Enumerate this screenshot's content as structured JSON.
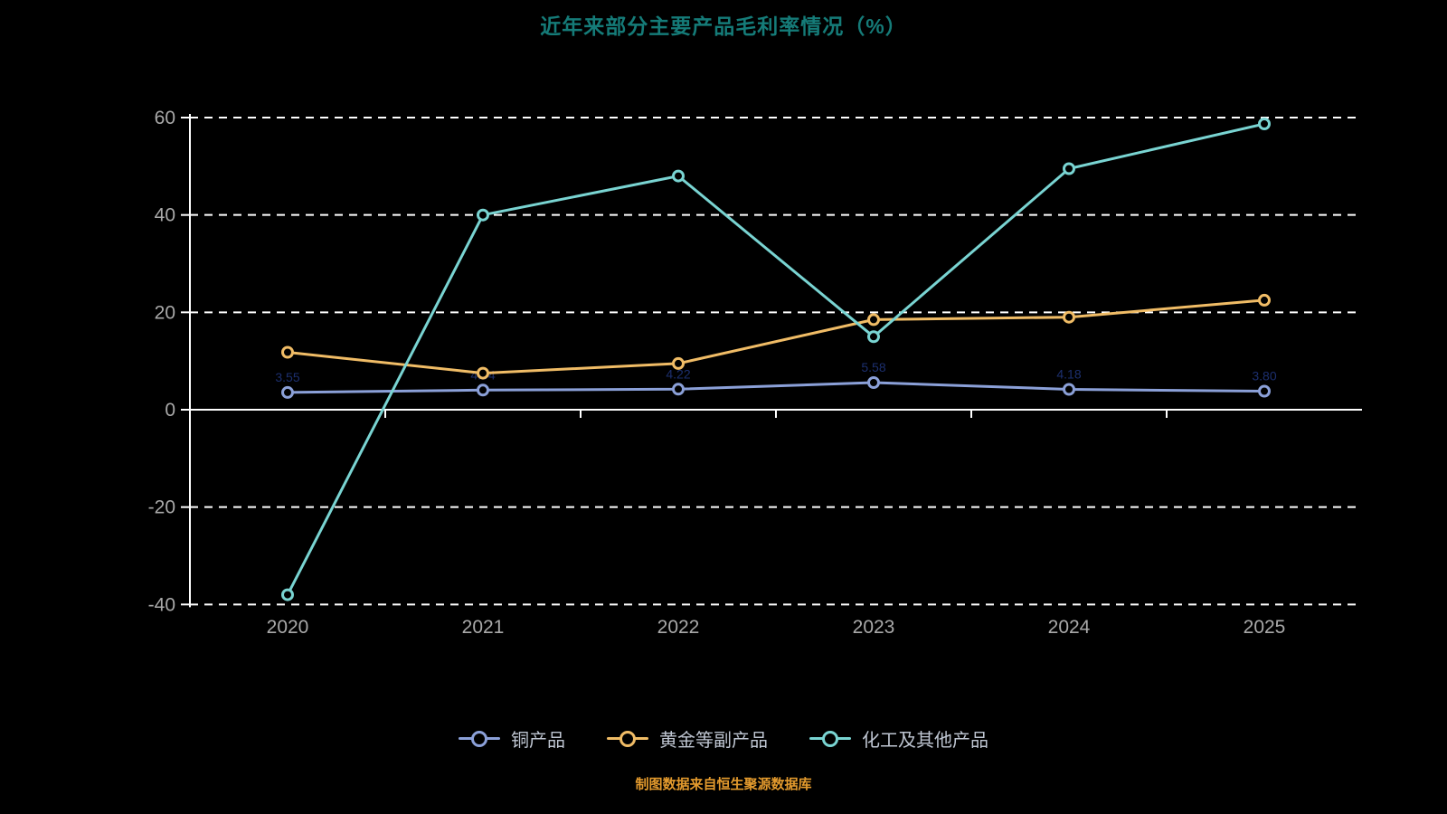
{
  "chart_data": {
    "type": "line",
    "title": "近年来部分主要产品毛利率情况（%）",
    "source_note": "制图数据来自恒生聚源数据库",
    "categories": [
      "2020",
      "2021",
      "2022",
      "2023",
      "2024",
      "2025"
    ],
    "yticks": [
      60,
      40,
      20,
      0,
      -20,
      -40
    ],
    "ylim": [
      -40,
      60
    ],
    "grid": true,
    "legend_position": "bottom",
    "axis": {
      "tick_color": "#a9a9a9",
      "line_color": "#ffffff"
    },
    "series": [
      {
        "name": "铜产品",
        "color": "#8ba0d8",
        "values": [
          3.55,
          4.04,
          4.22,
          5.58,
          4.18,
          3.8
        ],
        "labels": [
          "3.55",
          "4.04",
          "4.22",
          "5.58",
          "4.18",
          "3.80"
        ],
        "label_color": "#1c2f6e"
      },
      {
        "name": "黄金等副产品",
        "color": "#f0bc66",
        "values": [
          11.8,
          7.5,
          9.5,
          18.5,
          19.0,
          22.5
        ]
      },
      {
        "name": "化工及其他产品",
        "color": "#79d4d2",
        "values": [
          -38,
          40,
          48,
          15,
          49.5,
          58.7
        ]
      }
    ]
  }
}
